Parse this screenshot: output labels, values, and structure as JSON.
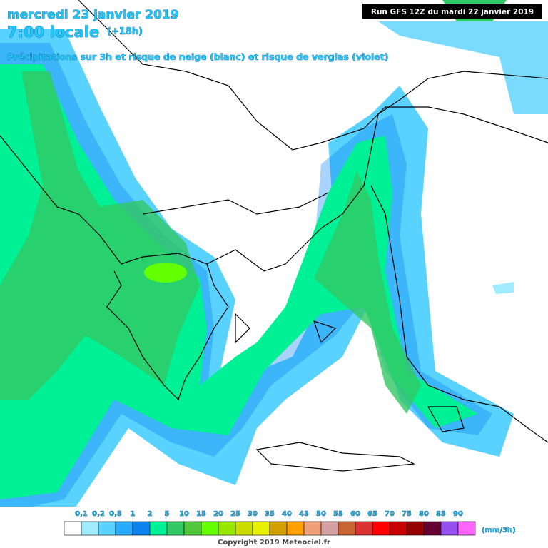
{
  "header": {
    "date": "mercredi 23 janvier 2019",
    "time": "7:00 locale",
    "lead": "(+18h)",
    "subtitle": "Précipitations sur 3h et risque de neige (blanc) et risque de verglas (violet)",
    "run": "Run GFS 12Z du mardi 22 janvier 2019"
  },
  "legend": {
    "labels": [
      "0,1",
      "0,2",
      "0,5",
      "1",
      "2",
      "5",
      "10",
      "15",
      "20",
      "25",
      "30",
      "35",
      "40",
      "45",
      "50",
      "55",
      "60",
      "65",
      "70",
      "75",
      "80",
      "85",
      "90"
    ],
    "colors": [
      "#ffffff",
      "#a0ebff",
      "#5ad2ff",
      "#28aaff",
      "#0a82f0",
      "#00f096",
      "#32c864",
      "#50c83c",
      "#64ff00",
      "#96e600",
      "#c8dc00",
      "#e6f000",
      "#d2a000",
      "#ffa000",
      "#f0a078",
      "#d2a0a0",
      "#c86432",
      "#dc3232",
      "#ff0000",
      "#c80000",
      "#960000",
      "#640032",
      "#9650f0",
      "#ff64ff"
    ],
    "unit": "(mm/3h)"
  },
  "footer": {
    "copyright": "Copyright 2019 Meteociel.fr"
  }
}
